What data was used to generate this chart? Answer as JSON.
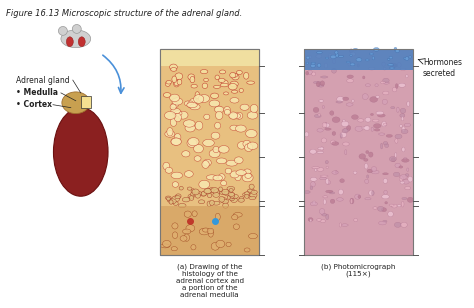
{
  "title": "Figure 16.13 Microscopic structure of the adrenal gland.",
  "title_fontsize": 6,
  "bg_color": "#ffffff",
  "left_labels": {
    "adrenal_gland": "Adrenal gland",
    "medulla": "• Medulla",
    "cortex": "• Cortex"
  },
  "caption_a": "(a) Drawing of the\nhistology of the\nadrenal cortex and\na portion of the\nadrenal medulla",
  "caption_b": "(b) Photomicrograph\n(115×)",
  "right_label": "Hormones\nsecreted",
  "panel_a_colors": {
    "top_band": "#f5e6c8",
    "cortex_bg": "#e8c080",
    "cell_color": "#f0d090",
    "vessel_color": "#c0392b",
    "medulla_bg": "#d4a060",
    "blue_dot": "#3498db",
    "red_dot": "#c0392b"
  },
  "panel_b_colors": {
    "top_band": "#4a90d9",
    "zona_glom": "#d4a0b0",
    "zona_fasc": "#e8b4c0",
    "zona_retic": "#c090a0",
    "medulla": "#b07090"
  },
  "tick_color": "#555555",
  "text_color": "#222222",
  "arrow_color": "#4a90d9"
}
